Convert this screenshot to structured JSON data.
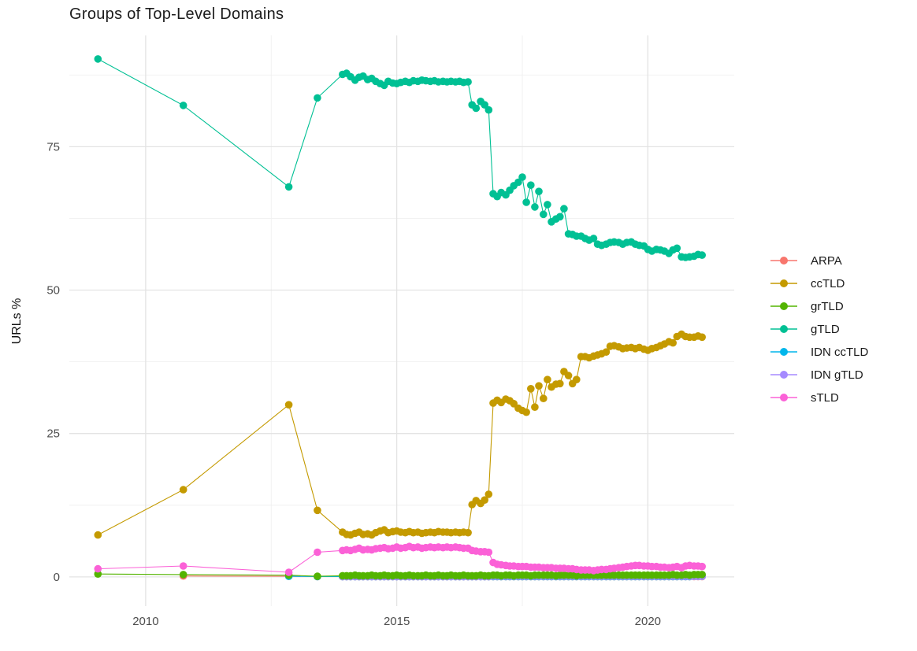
{
  "colors": {
    "background": "#ffffff",
    "grid_major": "#e3e3e3",
    "grid_minor": "#f0f0f0",
    "axis_text": "#4d4d4d",
    "title_text": "#1c1c1c"
  },
  "chart_data": {
    "type": "line",
    "title": "Groups of Top-Level Domains",
    "xlabel": "",
    "ylabel": "URLs %",
    "legend_position": "right",
    "grid": true,
    "x_domain": [
      2008.48,
      2021.72
    ],
    "y_domain": [
      -5.1,
      94.4
    ],
    "x_ticks": [
      {
        "v": 2010,
        "label": "2010"
      },
      {
        "v": 2015,
        "label": "2015"
      },
      {
        "v": 2020,
        "label": "2020"
      }
    ],
    "y_ticks": [
      {
        "v": 0,
        "label": "0"
      },
      {
        "v": 25,
        "label": "25"
      },
      {
        "v": 50,
        "label": "50"
      },
      {
        "v": 75,
        "label": "75"
      }
    ],
    "x_minor": [
      2012.5,
      2017.5
    ],
    "y_minor": [
      12.5,
      37.5,
      62.5,
      87.5
    ],
    "x": [
      2009.05,
      2010.75,
      2012.85,
      2013.42,
      2013.92,
      2014,
      2014.08,
      2014.17,
      2014.25,
      2014.33,
      2014.42,
      2014.5,
      2014.58,
      2014.67,
      2014.75,
      2014.83,
      2014.92,
      2015,
      2015.08,
      2015.17,
      2015.25,
      2015.33,
      2015.42,
      2015.5,
      2015.58,
      2015.67,
      2015.75,
      2015.83,
      2015.92,
      2016,
      2016.08,
      2016.17,
      2016.25,
      2016.33,
      2016.42,
      2016.5,
      2016.58,
      2016.67,
      2016.75,
      2016.83,
      2016.92,
      2017,
      2017.08,
      2017.17,
      2017.25,
      2017.33,
      2017.42,
      2017.5,
      2017.58,
      2017.67,
      2017.75,
      2017.83,
      2017.92,
      2018,
      2018.08,
      2018.17,
      2018.25,
      2018.33,
      2018.42,
      2018.5,
      2018.58,
      2018.67,
      2018.75,
      2018.83,
      2018.92,
      2019,
      2019.08,
      2019.17,
      2019.25,
      2019.33,
      2019.42,
      2019.5,
      2019.58,
      2019.67,
      2019.75,
      2019.83,
      2019.92,
      2020,
      2020.08,
      2020.17,
      2020.25,
      2020.33,
      2020.42,
      2020.5,
      2020.58,
      2020.67,
      2020.75,
      2020.83,
      2020.92,
      2021,
      2021.08
    ],
    "series": [
      {
        "name": "ARPA",
        "color": "#F8766D",
        "values": [
          null,
          0.15,
          0.1,
          0.05,
          0.05,
          0.05,
          0.05,
          0.05,
          0.05,
          0.05,
          0.05,
          0.05,
          0.05,
          0.05,
          0.05,
          0.05,
          0.05,
          0.05,
          0.05,
          0.05,
          0.05,
          0.05,
          0.05,
          0.05,
          0.05,
          0.05,
          0.05,
          0.05,
          0.05,
          0.05,
          0.05,
          0.05,
          0.05,
          0.05,
          0.05,
          0.05,
          0.05,
          0.05,
          0.05,
          0.05,
          0.05,
          0.05,
          0.05,
          0.05,
          0.05,
          0.05,
          0.05,
          0.05,
          0.05,
          0.05,
          0.05,
          0.05,
          0.05,
          0.05,
          0.05,
          0.05,
          0.05,
          0.05,
          0.05,
          0.05,
          0.05,
          0.05,
          0.05,
          0.05,
          0.05,
          0.05,
          0.05,
          0.05,
          0.05,
          0.05,
          0.05,
          0.05,
          0.05,
          0.05,
          0.05,
          0.05,
          0.05,
          0.05,
          0.05,
          0.05,
          0.05,
          0.05,
          0.05,
          0.05,
          0.05,
          0.05,
          0.05,
          0.05,
          0.05,
          0.05,
          0.05
        ]
      },
      {
        "name": "ccTLD",
        "color": "#C49A00",
        "values": [
          7.3,
          15.2,
          30,
          11.6,
          7.8,
          7.4,
          7.3,
          7.6,
          7.8,
          7.4,
          7.5,
          7.3,
          7.7,
          8,
          8.2,
          7.7,
          7.9,
          8,
          7.8,
          7.7,
          7.9,
          7.7,
          7.8,
          7.6,
          7.7,
          7.8,
          7.7,
          7.9,
          7.8,
          7.8,
          7.7,
          7.8,
          7.7,
          7.8,
          7.7,
          12.6,
          13.3,
          12.8,
          13.4,
          14.4,
          30.3,
          30.8,
          30.4,
          31,
          30.7,
          30.2,
          29.4,
          29,
          28.7,
          32.8,
          29.6,
          33.3,
          31.1,
          34.4,
          33.1,
          33.6,
          33.7,
          35.8,
          35.1,
          33.7,
          34.4,
          38.4,
          38.4,
          38.2,
          38.5,
          38.7,
          38.9,
          39.2,
          40.2,
          40.3,
          40.1,
          39.8,
          39.9,
          40,
          39.8,
          40,
          39.7,
          39.5,
          39.8,
          40,
          40.3,
          40.6,
          41,
          40.8,
          41.9,
          42.3,
          41.9,
          41.8,
          41.8,
          42,
          41.8
        ]
      },
      {
        "name": "grTLD",
        "color": "#53B400",
        "values": [
          0.5,
          0.4,
          0.3,
          0.1,
          0.2,
          0.2,
          0.2,
          0.3,
          0.2,
          0.2,
          0.2,
          0.3,
          0.2,
          0.2,
          0.3,
          0.2,
          0.2,
          0.3,
          0.2,
          0.2,
          0.3,
          0.2,
          0.2,
          0.2,
          0.3,
          0.2,
          0.2,
          0.3,
          0.2,
          0.2,
          0.3,
          0.2,
          0.2,
          0.3,
          0.2,
          0.2,
          0.2,
          0.3,
          0.2,
          0.2,
          0.3,
          0.3,
          0.2,
          0.3,
          0.3,
          0.2,
          0.3,
          0.3,
          0.3,
          0.2,
          0.3,
          0.3,
          0.3,
          0.3,
          0.3,
          0.2,
          0.3,
          0.3,
          0.3,
          0.3,
          0.2,
          0.3,
          0.3,
          0.3,
          0.3,
          0.3,
          0.3,
          0.3,
          0.3,
          0.3,
          0.3,
          0.3,
          0.3,
          0.3,
          0.3,
          0.3,
          0.3,
          0.3,
          0.3,
          0.3,
          0.3,
          0.3,
          0.3,
          0.4,
          0.3,
          0.3,
          0.4,
          0.3,
          0.4,
          0.4,
          0.4
        ]
      },
      {
        "name": "gTLD",
        "color": "#00C094",
        "values": [
          90.3,
          82.2,
          68,
          83.5,
          87.6,
          87.8,
          87.2,
          86.6,
          87.1,
          87.3,
          86.7,
          86.9,
          86.4,
          86,
          85.7,
          86.4,
          86.1,
          86,
          86.2,
          86.4,
          86.2,
          86.5,
          86.4,
          86.6,
          86.5,
          86.4,
          86.5,
          86.3,
          86.4,
          86.3,
          86.4,
          86.3,
          86.4,
          86.2,
          86.3,
          82.3,
          81.7,
          82.9,
          82.3,
          81.4,
          66.8,
          66.3,
          67,
          66.6,
          67.4,
          68.2,
          68.8,
          69.7,
          65.3,
          68.3,
          64.5,
          67.2,
          63.2,
          64.9,
          61.9,
          62.4,
          62.8,
          64.2,
          59.8,
          59.7,
          59.4,
          59.4,
          59,
          58.7,
          59,
          58,
          57.8,
          58,
          58.3,
          58.4,
          58.3,
          58,
          58.3,
          58.4,
          58,
          57.8,
          57.7,
          57.1,
          56.8,
          57.1,
          57,
          56.8,
          56.4,
          57,
          57.3,
          55.8,
          55.7,
          55.8,
          55.9,
          56.2,
          56.1
        ]
      },
      {
        "name": "IDN ccTLD",
        "color": "#00B6EB",
        "values": [
          null,
          null,
          0.1,
          0.05,
          0.05,
          0.05,
          0.05,
          0.05,
          0.05,
          0.05,
          0.05,
          0.05,
          0.05,
          0.05,
          0.05,
          0.05,
          0.05,
          0.05,
          0.05,
          0.05,
          0.05,
          0.05,
          0.05,
          0.05,
          0.05,
          0.05,
          0.05,
          0.05,
          0.05,
          0.05,
          0.05,
          0.05,
          0.05,
          0.05,
          0.05,
          0.05,
          0.05,
          0.05,
          0.05,
          0.05,
          0.05,
          0.05,
          0.05,
          0.05,
          0.05,
          0.05,
          0.05,
          0.05,
          0.05,
          0.05,
          0.05,
          0.05,
          0.05,
          0.05,
          0.05,
          0.05,
          0.05,
          0.05,
          0.05,
          0.05,
          0.05,
          0.05,
          0.05,
          0.05,
          0.05,
          0.05,
          0.05,
          0.05,
          0.05,
          0.05,
          0.05,
          0.05,
          0.05,
          0.05,
          0.05,
          0.05,
          0.05,
          0.05,
          0.05,
          0.05,
          0.05,
          0.05,
          0.05,
          0.05,
          0.05,
          0.05,
          0.05,
          0.05,
          0.1,
          0.1,
          0.1
        ]
      },
      {
        "name": "IDN gTLD",
        "color": "#A58AFF",
        "values": [
          null,
          null,
          null,
          null,
          0.05,
          0.05,
          0.05,
          0.05,
          0.05,
          0.05,
          0.05,
          0.05,
          0.05,
          0.05,
          0.05,
          0.05,
          0.05,
          0.05,
          0.05,
          0.05,
          0.05,
          0.05,
          0.05,
          0.05,
          0.05,
          0.05,
          0.05,
          0.05,
          0.05,
          0.05,
          0.05,
          0.05,
          0.05,
          0.05,
          0.05,
          0.05,
          0.05,
          0.05,
          0.05,
          0.05,
          0.1,
          0.1,
          0.1,
          0.1,
          0.1,
          0.1,
          0.1,
          0.1,
          0.1,
          0.1,
          0.1,
          0.1,
          0.1,
          0.1,
          0.1,
          0.1,
          0.1,
          0.1,
          0.1,
          0.1,
          0.1,
          0.1,
          0.1,
          0.1,
          0.1,
          0.1,
          0.1,
          0.1,
          0.1,
          0.1,
          0.1,
          0.1,
          0.1,
          0.1,
          0.1,
          0.1,
          0.1,
          0.1,
          0.1,
          0.1,
          0.1,
          0.1,
          0.1,
          0.1,
          0.1,
          0.1,
          0.1,
          0.1,
          0.1,
          0.1,
          0.1
        ]
      },
      {
        "name": "sTLD",
        "color": "#FB61D7",
        "values": [
          1.4,
          1.9,
          0.8,
          4.3,
          4.6,
          4.7,
          4.6,
          4.8,
          5,
          4.7,
          4.8,
          4.7,
          4.9,
          5,
          5.1,
          4.9,
          5,
          5.2,
          5,
          5.1,
          5.3,
          5.1,
          5.2,
          5,
          5.1,
          5.2,
          5.1,
          5.2,
          5.1,
          5.2,
          5.1,
          5.2,
          5.1,
          5,
          5,
          4.6,
          4.5,
          4.4,
          4.4,
          4.3,
          2.5,
          2.2,
          2.1,
          2,
          1.9,
          1.9,
          1.8,
          1.8,
          1.8,
          1.7,
          1.7,
          1.7,
          1.6,
          1.6,
          1.6,
          1.5,
          1.5,
          1.5,
          1.4,
          1.4,
          1.3,
          1.2,
          1.2,
          1.2,
          1.1,
          1.2,
          1.3,
          1.3,
          1.4,
          1.5,
          1.6,
          1.7,
          1.8,
          1.9,
          2,
          2,
          1.9,
          1.9,
          1.8,
          1.8,
          1.7,
          1.7,
          1.6,
          1.7,
          1.8,
          1.6,
          1.9,
          2,
          1.9,
          1.9,
          1.8
        ]
      }
    ],
    "draw_order": [
      "ARPA",
      "IDN ccTLD",
      "IDN gTLD",
      "ccTLD",
      "gTLD",
      "grTLD",
      "sTLD"
    ]
  }
}
